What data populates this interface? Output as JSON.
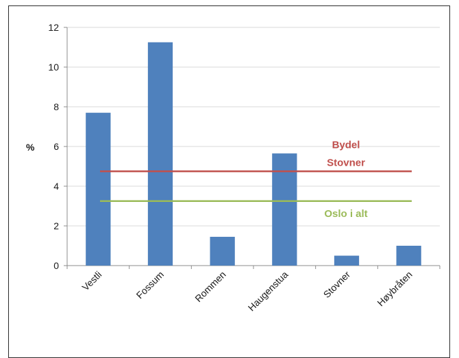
{
  "chart_data": {
    "type": "bar",
    "title": "",
    "xlabel": "",
    "ylabel": "%",
    "ylim": [
      0,
      12
    ],
    "yticks": [
      0,
      2,
      4,
      6,
      8,
      10,
      12
    ],
    "categories": [
      "Vestli",
      "Fossum",
      "Rommen",
      "Haugenstua",
      "Stovner",
      "Høybråten"
    ],
    "values": [
      7.7,
      11.25,
      1.45,
      5.65,
      0.5,
      1.0
    ],
    "bar_color": "#4f81bd",
    "grid": true,
    "legend": "none",
    "reference_lines": [
      {
        "label_lines": [
          "Bydel",
          "Stovner"
        ],
        "value": 4.75,
        "color": "#c0504d"
      },
      {
        "label_lines": [
          "Oslo i alt"
        ],
        "value": 3.25,
        "color": "#9bbb59"
      }
    ]
  }
}
